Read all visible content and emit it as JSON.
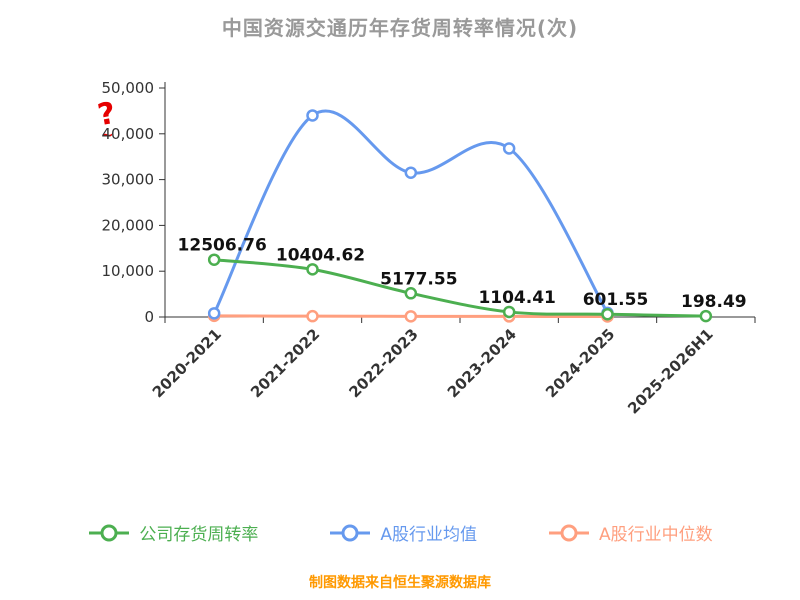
{
  "title": "中国资源交通历年存货周转率情况(次)",
  "caption": "制图数据来自恒生聚源数据库",
  "watermark": {
    "symbol": "?",
    "accent": "~",
    "color": "#e60000"
  },
  "colors": {
    "title": "#999999",
    "caption": "#ff9900",
    "axis": "#333333",
    "data_label": "#111111"
  },
  "legend": {
    "items": [
      "公司存货周转率",
      "A股行业均值",
      "A股行业中位数"
    ]
  },
  "chart_data": {
    "type": "line",
    "title": "中国资源交通历年存货周转率情况(次)",
    "categories": [
      "2020-2021",
      "2021-2022",
      "2022-2023",
      "2023-2024",
      "2024-2025",
      "2025-2026H1"
    ],
    "series": [
      {
        "name": "公司存货周转率",
        "color": "#4caf50",
        "values": [
          12506.76,
          10404.62,
          5177.55,
          1104.41,
          601.55,
          198.49
        ],
        "data_labels": [
          "12506.76",
          "10404.62",
          "5177.55",
          "1104.41",
          "601.55",
          "198.49"
        ]
      },
      {
        "name": "A股行业均值",
        "color": "#6699ee",
        "values": [
          800,
          44000,
          31500,
          36800,
          900,
          null
        ]
      },
      {
        "name": "A股行业中位数",
        "color": "#ff9f7f",
        "values": [
          250,
          180,
          150,
          130,
          110,
          null
        ]
      }
    ],
    "ylim": [
      0,
      50000
    ],
    "yticks": [
      0,
      10000,
      20000,
      30000,
      40000,
      50000
    ],
    "ytick_labels": [
      "0",
      "10,000",
      "20,000",
      "30,000",
      "40,000",
      "50,000"
    ],
    "xlabel": "",
    "ylabel": "",
    "grid": false,
    "smooth": true,
    "legend_position": "bottom"
  }
}
